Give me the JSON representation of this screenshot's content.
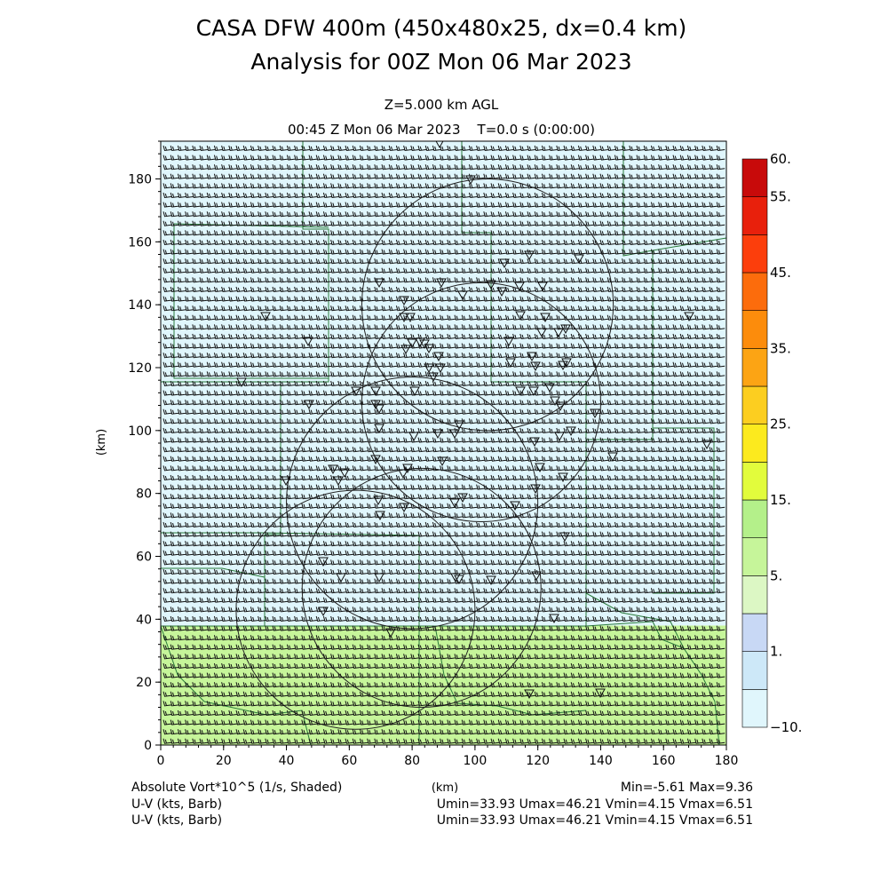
{
  "chart_data": {
    "type": "heatmap",
    "title_line1": "CASA DFW 400m (450x480x25, dx=0.4 km)",
    "title_line2": "Analysis for 00Z Mon 06 Mar 2023",
    "level_label": "Z=5.000 km AGL",
    "time_label": "00:45 Z Mon 06 Mar 2023    T=0.0 s (0:00:00)",
    "xlabel": "(km)",
    "ylabel": "(km)",
    "xlim": [
      0,
      180
    ],
    "ylim": [
      0,
      192
    ],
    "x_ticks": [
      0,
      20,
      40,
      60,
      80,
      100,
      120,
      140,
      160,
      180
    ],
    "y_ticks": [
      0,
      20,
      40,
      60,
      80,
      100,
      120,
      140,
      160,
      180
    ],
    "shaded_regions": [
      {
        "y_from": 0,
        "y_to": 38,
        "color": "#c6f59a"
      },
      {
        "y_from": 38,
        "y_to": 192,
        "color": "#e0f6fc"
      }
    ],
    "colorbar": {
      "levels": [
        -10,
        0,
        1,
        3,
        5,
        10,
        15,
        20,
        25,
        30,
        35,
        40,
        45,
        50,
        55,
        60
      ],
      "labels": [
        {
          "value": 60,
          "text": "60."
        },
        {
          "value": 55,
          "text": "55."
        },
        {
          "value": 45,
          "text": "45."
        },
        {
          "value": 35,
          "text": "35."
        },
        {
          "value": 25,
          "text": "25."
        },
        {
          "value": 15,
          "text": "15."
        },
        {
          "value": 5,
          "text": "5."
        },
        {
          "value": 1,
          "text": "1."
        },
        {
          "value": -10,
          "text": "−10."
        }
      ],
      "colors": [
        "#e0f6fc",
        "#cde8f8",
        "#c8d8f5",
        "#dcf7c4",
        "#c6f59a",
        "#b4f08a",
        "#e2fc3c",
        "#fcea1e",
        "#fcce20",
        "#fca414",
        "#fc8c0c",
        "#fc6c0c",
        "#fc3e0c",
        "#e8200c",
        "#c80a0a"
      ]
    },
    "radar_rings": [
      {
        "cx": 62,
        "cy": 43,
        "r": 38
      },
      {
        "cx": 80,
        "cy": 77,
        "r": 40
      },
      {
        "cx": 83,
        "cy": 50,
        "r": 38
      },
      {
        "cx": 102,
        "cy": 109,
        "r": 38
      },
      {
        "cx": 104,
        "cy": 140,
        "r": 40
      }
    ],
    "field_label": "Absolute Vort*10^5 (1/s, Shaded)",
    "field_stats": "Min=-5.61 Max=9.36",
    "wind_rows": [
      {
        "label": "U-V (kts, Barb)",
        "stats": "Umin=33.93 Umax=46.21 Vmin=4.15 Vmax=6.51"
      },
      {
        "label": "U-V (kts, Barb)",
        "stats": "Umin=33.93 Umax=46.21 Vmin=4.15 Vmax=6.51"
      }
    ]
  }
}
